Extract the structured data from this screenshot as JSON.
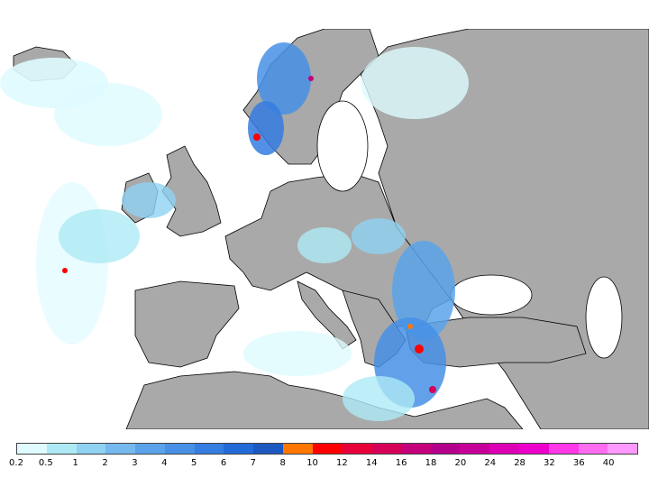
{
  "map": {
    "land_color": "#a9a9a9",
    "sea_color": "#ffffff",
    "border_color": "#000000"
  },
  "legend": {
    "colors": [
      "#dffbff",
      "#aeeaf5",
      "#90d2f2",
      "#75b9ef",
      "#5aa3ea",
      "#4790e5",
      "#357de0",
      "#226ad8",
      "#1c58bf",
      "#ff7700",
      "#ff0000",
      "#e8003a",
      "#d60059",
      "#c4007a",
      "#b5008c",
      "#c8009a",
      "#dd00b5",
      "#ee00cc",
      "#ff38e8",
      "#ff6cf0",
      "#ff99ff"
    ],
    "labels": [
      "0.2",
      "0.5",
      "1",
      "2",
      "3",
      "4",
      "5",
      "6",
      "7",
      "8",
      "10",
      "12",
      "14",
      "16",
      "18",
      "20",
      "24",
      "28",
      "32",
      "36",
      "40"
    ]
  }
}
